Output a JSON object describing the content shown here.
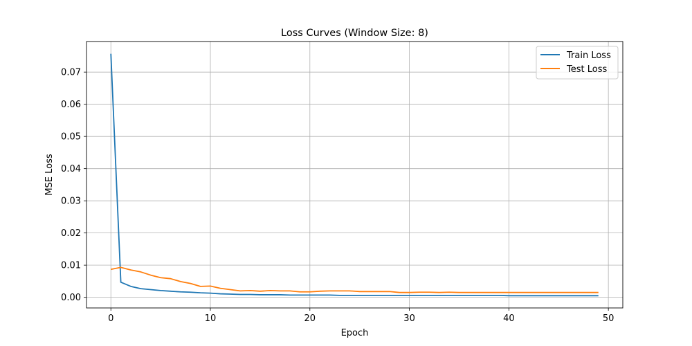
{
  "chart_data": {
    "type": "line",
    "title": "Loss Curves (Window Size: 8)",
    "xlabel": "Epoch",
    "ylabel": "MSE Loss",
    "xlim": [
      -2.45,
      51.45
    ],
    "ylim": [
      -0.0033,
      0.0795
    ],
    "xticks": [
      0,
      10,
      20,
      30,
      40,
      50
    ],
    "xtick_labels": [
      "0",
      "10",
      "20",
      "30",
      "40",
      "50"
    ],
    "yticks": [
      0.0,
      0.01,
      0.02,
      0.03,
      0.04,
      0.05,
      0.06,
      0.07
    ],
    "ytick_labels": [
      "0.00",
      "0.01",
      "0.02",
      "0.03",
      "0.04",
      "0.05",
      "0.06",
      "0.07"
    ],
    "grid": true,
    "legend_position": "top-right",
    "series": [
      {
        "name": "Train Loss",
        "color": "#1f77b4",
        "x": [
          0,
          1,
          2,
          3,
          4,
          5,
          6,
          7,
          8,
          9,
          10,
          11,
          12,
          13,
          14,
          15,
          16,
          17,
          18,
          19,
          20,
          21,
          22,
          23,
          24,
          25,
          26,
          27,
          28,
          29,
          30,
          31,
          32,
          33,
          34,
          35,
          36,
          37,
          38,
          39,
          40,
          41,
          42,
          43,
          44,
          45,
          46,
          47,
          48,
          49
        ],
        "values": [
          0.0757,
          0.0047,
          0.0034,
          0.0027,
          0.0024,
          0.0021,
          0.0019,
          0.0017,
          0.0016,
          0.0014,
          0.0013,
          0.0011,
          0.001,
          0.0009,
          0.0009,
          0.0008,
          0.0008,
          0.0008,
          0.0007,
          0.0007,
          0.0007,
          0.0007,
          0.0007,
          0.0006,
          0.0006,
          0.0006,
          0.0006,
          0.0006,
          0.0006,
          0.0006,
          0.0006,
          0.0006,
          0.0006,
          0.0006,
          0.0006,
          0.0006,
          0.0006,
          0.0006,
          0.0006,
          0.0006,
          0.0005,
          0.0005,
          0.0005,
          0.0005,
          0.0005,
          0.0005,
          0.0005,
          0.0005,
          0.0005,
          0.0005
        ]
      },
      {
        "name": "Test Loss",
        "color": "#ff7f0e",
        "x": [
          0,
          1,
          2,
          3,
          4,
          5,
          6,
          7,
          8,
          9,
          10,
          11,
          12,
          13,
          14,
          15,
          16,
          17,
          18,
          19,
          20,
          21,
          22,
          23,
          24,
          25,
          26,
          27,
          28,
          29,
          30,
          31,
          32,
          33,
          34,
          35,
          36,
          37,
          38,
          39,
          40,
          41,
          42,
          43,
          44,
          45,
          46,
          47,
          48,
          49
        ],
        "values": [
          0.0087,
          0.0093,
          0.0085,
          0.0079,
          0.0069,
          0.0061,
          0.0058,
          0.0049,
          0.0043,
          0.0034,
          0.0035,
          0.0028,
          0.0024,
          0.002,
          0.0021,
          0.0019,
          0.0021,
          0.002,
          0.002,
          0.0017,
          0.0017,
          0.0019,
          0.002,
          0.002,
          0.002,
          0.0018,
          0.0018,
          0.0018,
          0.0018,
          0.0015,
          0.0015,
          0.0016,
          0.0016,
          0.0015,
          0.0016,
          0.0015,
          0.0015,
          0.0015,
          0.0015,
          0.0015,
          0.0015,
          0.0015,
          0.0015,
          0.0015,
          0.0015,
          0.0015,
          0.0015,
          0.0015,
          0.0015,
          0.0015
        ]
      }
    ]
  }
}
